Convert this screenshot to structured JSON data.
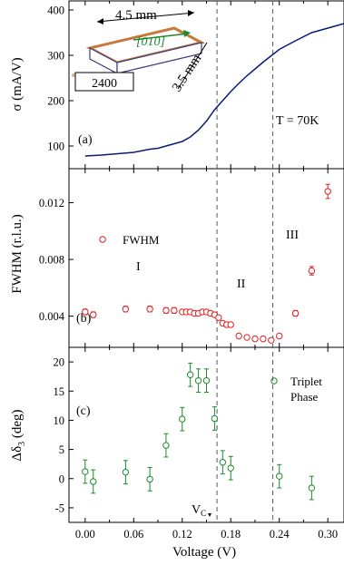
{
  "chart_data": [
    {
      "type": "line",
      "panel_label": "(a)",
      "ylabel": "σ (mA/V)",
      "annotation": "T = 70K",
      "ylim": [
        50,
        420
      ],
      "yticks": [
        100,
        200,
        300,
        400
      ],
      "series": [
        {
          "color": "#0a1a78",
          "x": [
            0.0,
            0.02,
            0.04,
            0.06,
            0.08,
            0.09,
            0.1,
            0.11,
            0.12,
            0.13,
            0.14,
            0.15,
            0.16,
            0.17,
            0.18,
            0.19,
            0.2,
            0.22,
            0.24,
            0.26,
            0.28,
            0.3,
            0.32
          ],
          "y": [
            78,
            80,
            83,
            86,
            93,
            95,
            100,
            105,
            110,
            120,
            135,
            155,
            180,
            200,
            220,
            238,
            255,
            285,
            313,
            332,
            350,
            360,
            370
          ]
        }
      ],
      "inset": {
        "dimension_width": "4.5 mm",
        "dimension_depth": "3.5 mm",
        "direction": "[010]",
        "label": "2400"
      }
    },
    {
      "type": "scatter",
      "panel_label": "(b)",
      "ylabel": "FWHM (r.l.u.)",
      "ylim": [
        0.0018,
        0.0144
      ],
      "yticks": [
        0.004,
        0.008,
        0.012
      ],
      "ytick_labels": [
        "0.004",
        "0.008",
        "0.012"
      ],
      "legend": "FWHM",
      "regions": [
        "I",
        "II",
        "III"
      ],
      "series": [
        {
          "name": "FWHM",
          "color": "#e0201e",
          "x": [
            0.0,
            0.01,
            0.05,
            0.08,
            0.1,
            0.11,
            0.12,
            0.125,
            0.13,
            0.135,
            0.14,
            0.145,
            0.15,
            0.155,
            0.16,
            0.165,
            0.17,
            0.175,
            0.18,
            0.19,
            0.2,
            0.21,
            0.22,
            0.23,
            0.24,
            0.26,
            0.28,
            0.3
          ],
          "y": [
            0.0043,
            0.0041,
            0.0045,
            0.0045,
            0.0044,
            0.0044,
            0.0043,
            0.0043,
            0.0043,
            0.0042,
            0.0042,
            0.0043,
            0.0043,
            0.0042,
            0.0041,
            0.0039,
            0.0035,
            0.0034,
            0.0034,
            0.0026,
            0.0025,
            0.0024,
            0.0024,
            0.0023,
            0.0026,
            0.0042,
            0.0072,
            0.0128
          ],
          "err": [
            0.0002,
            0.0002,
            0.0002,
            0.0002,
            0.0002,
            0.0002,
            0.00015,
            0.00015,
            0.00015,
            0.00015,
            0.00015,
            0.00015,
            0.00015,
            0.00015,
            0.00015,
            0.00015,
            0.00015,
            0.00015,
            0.00015,
            0.0001,
            0.0001,
            0.0001,
            0.0001,
            0.0001,
            0.0001,
            0.0002,
            0.0003,
            0.0005
          ]
        }
      ]
    },
    {
      "type": "scatter",
      "panel_label": "(c)",
      "ylabel_main": "Δδ",
      "ylabel_sub": "3",
      "ylabel_unit": " (deg)",
      "xlabel": "Voltage (V)",
      "xlim": [
        -0.02,
        0.32
      ],
      "xticks": [
        0.0,
        0.06,
        0.12,
        0.18,
        0.24,
        0.3
      ],
      "xtick_labels": [
        "0.00",
        "0.06",
        "0.12",
        "0.18",
        "0.24",
        "0.30"
      ],
      "ylim": [
        -7.5,
        22.5
      ],
      "yticks": [
        -5,
        0,
        5,
        10,
        15,
        20
      ],
      "legend_line1": "Triplet",
      "legend_line2": "Phase",
      "vc_label": "V",
      "vc_sub": "C",
      "vlines": [
        0.163,
        0.232
      ],
      "series": [
        {
          "name": "Triplet Phase",
          "color": "#1a8a2a",
          "x": [
            0.0,
            0.01,
            0.05,
            0.08,
            0.1,
            0.12,
            0.13,
            0.14,
            0.15,
            0.16,
            0.17,
            0.18,
            0.24,
            0.28
          ],
          "y": [
            1.2,
            -0.5,
            1.1,
            -0.1,
            5.7,
            10.2,
            17.8,
            16.8,
            16.8,
            10.3,
            2.8,
            1.8,
            0.4,
            -1.6
          ],
          "err": [
            2.0,
            2.0,
            2.0,
            2.0,
            2.0,
            2.0,
            2.0,
            2.0,
            2.0,
            2.0,
            2.0,
            2.0,
            2.0,
            2.0
          ]
        }
      ]
    }
  ]
}
